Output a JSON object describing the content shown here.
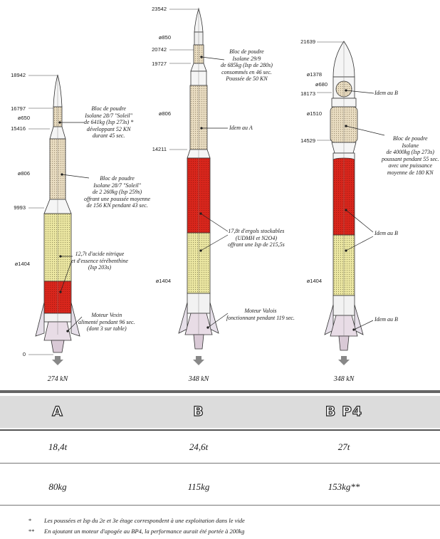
{
  "rockets": [
    {
      "id": "A",
      "dims": {
        "top": "18942",
        "d1": "16797",
        "dia1": "ø650",
        "d2": "15416",
        "dia2": "ø806",
        "d3": "9993",
        "dia3": "ø1404",
        "base": "0"
      },
      "annotations": [
        [
          "Bloc de poudre",
          "Isolane 28/7 \"Soleil\"",
          "de 641kg (Isp 273s) *",
          "développant 52 KN",
          "durant 45 sec."
        ],
        [
          "Bloc de poudre",
          "Isolane 28/7 \"Soleil\"",
          "de 2 260kg (Isp 259s)",
          "offrant une poussée moyenne",
          "de 156 KN pendant 43 sec."
        ],
        [
          "12,7t d'acide nitrique",
          "et d'essence térébenthine",
          "(Isp 203s)"
        ],
        [
          "Moteur Vexin",
          "alimenté pendant 96 sec.",
          "(dont 3 sur table)"
        ]
      ],
      "thrust": "274 kN",
      "name": "A",
      "mass": "18,4t",
      "payload": "80kg"
    },
    {
      "id": "B",
      "dims": {
        "top": "23542",
        "dia1": "ø850",
        "d1": "20742",
        "d2": "19727",
        "dia2": "ø806",
        "d3": "14211",
        "dia3": "ø1404"
      },
      "annotations": [
        [
          "Bloc de poudre",
          "Isolane 29/9",
          "de 685kg (Isp de 280s)",
          "consommés en 46 sec.",
          "Poussée de 50 KN"
        ],
        [
          "Idem au A"
        ],
        [
          "17,8t d'ergols stockables",
          "(UDMH et N2O4)",
          "offrant une Isp de 215,5s"
        ],
        [
          "Moteur Valois",
          "fonctionnant pendant 119 sec."
        ]
      ],
      "thrust": "348 kN",
      "name": "B",
      "mass": "24,6t",
      "payload": "115kg"
    },
    {
      "id": "BP4",
      "dims": {
        "top": "21639",
        "dia1": "ø1378",
        "dia2": "ø680",
        "d1": "18173",
        "dia3": "ø1510",
        "d2": "14529",
        "dia4": "ø1404"
      },
      "annotations": [
        [
          "Idem au B"
        ],
        [
          "Bloc de poudre",
          "Isolane",
          "de 4000kg (Isp 273s)",
          "poussant pendant 55 sec.",
          "avec une puissance",
          "moyenne de 180 KN"
        ],
        [
          "Idem au B"
        ],
        [
          "Idem au B"
        ]
      ],
      "thrust": "348 kN",
      "name": "B P4",
      "mass": "27t",
      "payload": "153kg**"
    }
  ],
  "notes": [
    {
      "star": "*",
      "text": "Les poussées et Isp du 2e et 3e étage correspondent à une exploitation dans le vide"
    },
    {
      "star": "**",
      "text": "En ajoutant un moteur d'apogée au BP4, la performance aurait été portée à 200kg"
    }
  ],
  "colors": {
    "liquid_red": "#d8261c",
    "liquid_yellow": "#ece7a2",
    "solid": "#e6d2b0",
    "band": "#dcdcdc",
    "rule": "#555555"
  }
}
